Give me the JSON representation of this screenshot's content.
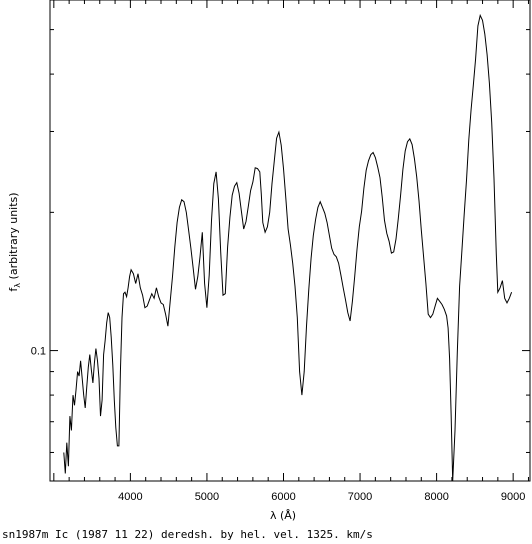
{
  "chart_data": {
    "type": "line",
    "xlabel": "λ (Å)",
    "ylabel": "f_λ (arbitrary units)",
    "ylabel_main": "f",
    "ylabel_sub": "λ",
    "ylabel_rest": " (arbitrary units)",
    "caption": "sn1987m Ic (1987 11 22) deredsh. by hel. vel.  1325. km/s",
    "x_ticks": [
      4000,
      5000,
      6000,
      7000,
      8000,
      9000
    ],
    "x_tick_labels": [
      "4000",
      "5000",
      "6000",
      "7000",
      "8000",
      "9000"
    ],
    "y_tick_labels": [
      {
        "value": 0.1,
        "label": "0.1"
      }
    ],
    "xlim": [
      2950,
      9220
    ],
    "ylim": [
      0.052,
      0.58
    ],
    "y_scale": "log",
    "grid": false,
    "series": [
      {
        "x": [
          3130,
          3150,
          3170,
          3190,
          3210,
          3230,
          3250,
          3270,
          3290,
          3310,
          3330,
          3350,
          3370,
          3390,
          3410,
          3430,
          3450,
          3470,
          3490,
          3510,
          3530,
          3550,
          3570,
          3590,
          3610,
          3630,
          3650,
          3670,
          3690,
          3710,
          3730,
          3750,
          3770,
          3790,
          3810,
          3830,
          3850,
          3870,
          3890,
          3910,
          3930,
          3950,
          3970,
          3990,
          4010,
          4040,
          4070,
          4100,
          4130,
          4160,
          4190,
          4220,
          4250,
          4280,
          4310,
          4340,
          4370,
          4400,
          4430,
          4460,
          4490,
          4520,
          4550,
          4580,
          4610,
          4640,
          4670,
          4700,
          4730,
          4760,
          4790,
          4820,
          4850,
          4880,
          4910,
          4940,
          4970,
          5000,
          5030,
          5060,
          5090,
          5120,
          5150,
          5180,
          5210,
          5240,
          5270,
          5300,
          5330,
          5360,
          5390,
          5420,
          5450,
          5480,
          5510,
          5540,
          5570,
          5600,
          5630,
          5660,
          5690,
          5710,
          5730,
          5760,
          5790,
          5820,
          5850,
          5880,
          5910,
          5940,
          5970,
          6000,
          6030,
          6060,
          6090,
          6120,
          6150,
          6180,
          6210,
          6240,
          6270,
          6300,
          6330,
          6360,
          6390,
          6420,
          6450,
          6480,
          6510,
          6540,
          6570,
          6600,
          6630,
          6660,
          6690,
          6720,
          6750,
          6780,
          6810,
          6840,
          6870,
          6900,
          6930,
          6960,
          6990,
          7020,
          7050,
          7080,
          7110,
          7140,
          7170,
          7200,
          7230,
          7260,
          7290,
          7320,
          7350,
          7380,
          7410,
          7440,
          7470,
          7500,
          7530,
          7560,
          7590,
          7620,
          7650,
          7680,
          7710,
          7740,
          7770,
          7800,
          7830,
          7860,
          7890,
          7920,
          7950,
          7980,
          8010,
          8040,
          8070,
          8100,
          8130,
          8150,
          8170,
          8190,
          8210,
          8240,
          8270,
          8300,
          8330,
          8360,
          8390,
          8420,
          8450,
          8480,
          8510,
          8540,
          8570,
          8600,
          8630,
          8660,
          8690,
          8720,
          8750,
          8780,
          8800,
          8830,
          8860,
          8890,
          8920,
          8950,
          8980
        ],
        "y": [
          0.06,
          0.054,
          0.063,
          0.056,
          0.072,
          0.067,
          0.08,
          0.076,
          0.082,
          0.09,
          0.088,
          0.095,
          0.087,
          0.08,
          0.075,
          0.083,
          0.092,
          0.098,
          0.091,
          0.085,
          0.094,
          0.101,
          0.095,
          0.087,
          0.072,
          0.078,
          0.098,
          0.105,
          0.115,
          0.121,
          0.118,
          0.107,
          0.093,
          0.078,
          0.068,
          0.062,
          0.062,
          0.09,
          0.118,
          0.133,
          0.134,
          0.131,
          0.137,
          0.145,
          0.15,
          0.147,
          0.14,
          0.147,
          0.137,
          0.132,
          0.124,
          0.125,
          0.129,
          0.133,
          0.13,
          0.137,
          0.131,
          0.127,
          0.126,
          0.12,
          0.113,
          0.128,
          0.145,
          0.168,
          0.19,
          0.205,
          0.213,
          0.211,
          0.2,
          0.183,
          0.167,
          0.151,
          0.136,
          0.145,
          0.16,
          0.181,
          0.14,
          0.124,
          0.146,
          0.192,
          0.231,
          0.245,
          0.214,
          0.164,
          0.132,
          0.133,
          0.168,
          0.195,
          0.218,
          0.228,
          0.232,
          0.22,
          0.201,
          0.184,
          0.191,
          0.206,
          0.223,
          0.233,
          0.25,
          0.249,
          0.245,
          0.219,
          0.19,
          0.181,
          0.186,
          0.2,
          0.231,
          0.259,
          0.29,
          0.299,
          0.28,
          0.249,
          0.215,
          0.184,
          0.17,
          0.155,
          0.138,
          0.118,
          0.09,
          0.08,
          0.09,
          0.113,
          0.136,
          0.159,
          0.178,
          0.193,
          0.205,
          0.211,
          0.205,
          0.199,
          0.19,
          0.178,
          0.167,
          0.162,
          0.16,
          0.155,
          0.146,
          0.137,
          0.129,
          0.121,
          0.116,
          0.128,
          0.145,
          0.166,
          0.186,
          0.201,
          0.226,
          0.247,
          0.259,
          0.267,
          0.27,
          0.263,
          0.251,
          0.238,
          0.216,
          0.192,
          0.18,
          0.173,
          0.163,
          0.164,
          0.175,
          0.194,
          0.218,
          0.248,
          0.272,
          0.285,
          0.289,
          0.281,
          0.262,
          0.239,
          0.212,
          0.183,
          0.16,
          0.14,
          0.12,
          0.118,
          0.12,
          0.125,
          0.13,
          0.128,
          0.126,
          0.123,
          0.119,
          0.112,
          0.096,
          0.073,
          0.052,
          0.067,
          0.099,
          0.138,
          0.165,
          0.198,
          0.235,
          0.288,
          0.335,
          0.378,
          0.432,
          0.509,
          0.537,
          0.524,
          0.489,
          0.441,
          0.382,
          0.314,
          0.237,
          0.162,
          0.134,
          0.137,
          0.142,
          0.13,
          0.127,
          0.13,
          0.134
        ]
      }
    ]
  }
}
